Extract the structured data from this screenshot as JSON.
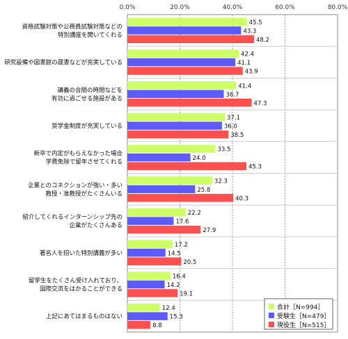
{
  "chart_data": {
    "type": "bar",
    "orientation": "horizontal",
    "xlim": [
      0,
      80
    ],
    "ticks": [
      "0.0%",
      "20.0%",
      "40.0%",
      "60.0%",
      "80.0%"
    ],
    "grid": true,
    "legend_position": "bottom-right",
    "categories": [
      [
        "資格試験対策や公務員試験対策などの",
        "特別講座を開いてくれる"
      ],
      [
        "研究設備や図書館の蔵書などが充実している"
      ],
      [
        "講義の合間の時間などを",
        "有効に過ごせる施設がある"
      ],
      [
        "奨学金制度が充実している"
      ],
      [
        "新卒で内定がもらえなかった場合",
        "学費免除で留年させてくれる"
      ],
      [
        "企業とのコネクションが強い・多い",
        "教授・准教授がたくさんいる"
      ],
      [
        "紹介してくれるインターンシップ先の",
        "企業がたくさんある"
      ],
      [
        "著名人を招いた特別講義が多い"
      ],
      [
        "留学生をたくさん受け入れており、",
        "国際交流をはかることができる"
      ],
      [
        "上記にあてはまるものはない"
      ]
    ],
    "series": [
      {
        "name": "合計［N=994］",
        "color": "#ccff66",
        "values": [
          45.5,
          42.4,
          41.4,
          37.1,
          33.5,
          32.3,
          22.2,
          17.2,
          16.4,
          12.4
        ]
      },
      {
        "name": "受験生［N=479］",
        "color": "#5b5bff",
        "values": [
          43.3,
          41.1,
          36.7,
          36.0,
          24.0,
          25.8,
          17.6,
          14.5,
          14.2,
          15.3
        ]
      },
      {
        "name": "現役生［N=515］",
        "color": "#ff5050",
        "values": [
          48.2,
          43.9,
          47.3,
          38.5,
          45.3,
          40.3,
          27.9,
          20.5,
          19.1,
          8.8
        ]
      }
    ]
  }
}
